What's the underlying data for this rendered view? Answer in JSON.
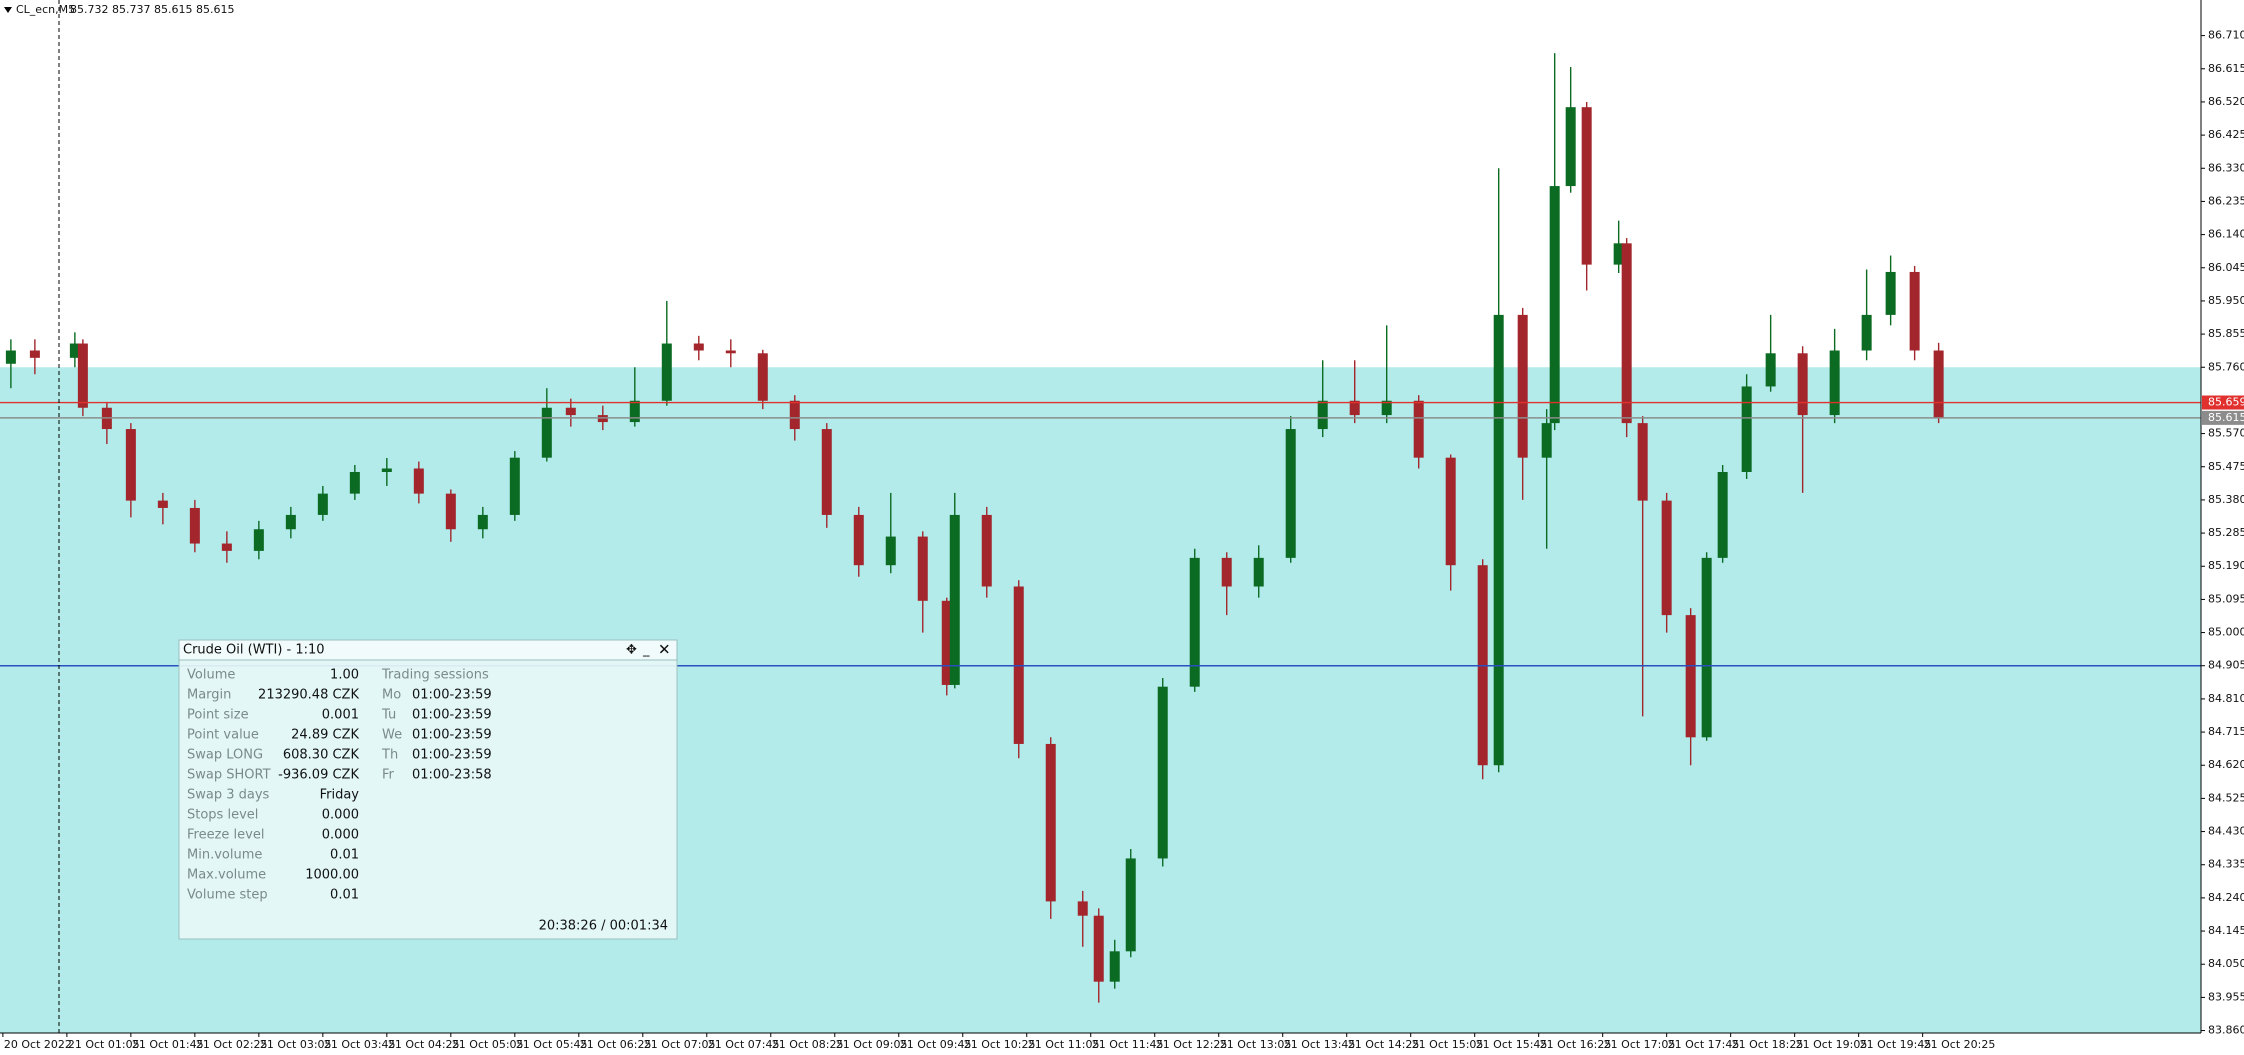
{
  "header": {
    "symbol": "CL_ecn,M5",
    "quote": "85.732 85.737 85.615 85.615"
  },
  "chart_data": {
    "type": "candlestick",
    "x": [
      1,
      4,
      9,
      10,
      13,
      16,
      20,
      24,
      28,
      32,
      36,
      40,
      44,
      48,
      52,
      56,
      60,
      64,
      68,
      71,
      75,
      79,
      83,
      87,
      91,
      95,
      99,
      103,
      107,
      111,
      115,
      118,
      119,
      123,
      127,
      131,
      135,
      137,
      139,
      141,
      145,
      149,
      153,
      157,
      161,
      165,
      169,
      173,
      177,
      181,
      185,
      187,
      190,
      193,
      194,
      196,
      198,
      202,
      203,
      205,
      208,
      211,
      213,
      215,
      218,
      221,
      225,
      229,
      233,
      236,
      239,
      242
    ],
    "open": [
      85.77,
      85.808,
      85.787,
      85.828,
      85.644,
      85.583,
      85.378,
      85.357,
      85.255,
      85.234,
      85.296,
      85.337,
      85.398,
      85.46,
      85.47,
      85.398,
      85.296,
      85.337,
      85.501,
      85.644,
      85.623,
      85.603,
      85.664,
      85.828,
      85.808,
      85.8,
      85.664,
      85.583,
      85.337,
      85.193,
      85.275,
      85.091,
      84.85,
      85.337,
      85.132,
      84.681,
      84.23,
      84.189,
      84.0,
      84.087,
      84.353,
      84.845,
      85.214,
      85.132,
      85.214,
      85.583,
      85.664,
      85.623,
      85.664,
      85.501,
      85.193,
      84.62,
      85.91,
      85.501,
      85.6,
      86.279,
      86.505,
      86.054,
      86.115,
      85.6,
      85.378,
      85.05,
      84.7,
      85.214,
      85.46,
      85.705,
      85.8,
      85.623,
      85.808,
      85.91,
      86.033,
      85.808
    ],
    "high": [
      85.84,
      85.84,
      85.86,
      85.84,
      85.66,
      85.6,
      85.4,
      85.38,
      85.29,
      85.32,
      85.36,
      85.42,
      85.48,
      85.5,
      85.49,
      85.41,
      85.36,
      85.52,
      85.7,
      85.67,
      85.65,
      85.76,
      85.95,
      85.85,
      85.84,
      85.81,
      85.68,
      85.6,
      85.36,
      85.4,
      85.29,
      85.1,
      85.4,
      85.36,
      85.15,
      84.7,
      84.26,
      84.21,
      84.12,
      84.38,
      84.87,
      85.24,
      85.23,
      85.25,
      85.62,
      85.78,
      85.78,
      85.88,
      85.68,
      85.51,
      85.21,
      86.33,
      85.93,
      85.64,
      86.66,
      86.62,
      86.52,
      86.18,
      86.13,
      85.62,
      85.4,
      85.07,
      85.23,
      85.48,
      85.74,
      85.91,
      85.82,
      85.87,
      86.04,
      86.08,
      86.05,
      85.83
    ],
    "low": [
      85.7,
      85.74,
      85.76,
      85.62,
      85.54,
      85.33,
      85.31,
      85.23,
      85.2,
      85.21,
      85.27,
      85.32,
      85.38,
      85.42,
      85.37,
      85.26,
      85.27,
      85.32,
      85.49,
      85.59,
      85.58,
      85.59,
      85.65,
      85.78,
      85.76,
      85.64,
      85.55,
      85.3,
      85.16,
      85.17,
      85.0,
      84.82,
      84.84,
      85.1,
      84.64,
      84.18,
      84.1,
      83.94,
      83.98,
      84.07,
      84.33,
      84.83,
      85.05,
      85.1,
      85.2,
      85.56,
      85.6,
      85.6,
      85.47,
      85.12,
      84.58,
      84.6,
      85.38,
      85.24,
      85.58,
      86.26,
      85.98,
      86.03,
      85.56,
      84.76,
      85.0,
      84.62,
      84.69,
      85.2,
      85.44,
      85.69,
      85.4,
      85.6,
      85.78,
      85.88,
      85.78,
      85.6
    ],
    "close": [
      85.808,
      85.787,
      85.828,
      85.644,
      85.583,
      85.378,
      85.357,
      85.255,
      85.234,
      85.296,
      85.337,
      85.398,
      85.46,
      85.47,
      85.398,
      85.296,
      85.337,
      85.501,
      85.644,
      85.623,
      85.603,
      85.664,
      85.828,
      85.808,
      85.8,
      85.664,
      85.583,
      85.337,
      85.193,
      85.275,
      85.091,
      84.85,
      85.337,
      85.132,
      84.681,
      84.23,
      84.189,
      84.0,
      84.087,
      84.353,
      84.845,
      85.214,
      85.132,
      85.214,
      85.583,
      85.664,
      85.623,
      85.664,
      85.501,
      85.193,
      84.62,
      85.91,
      85.501,
      85.6,
      86.279,
      86.505,
      86.054,
      86.115,
      85.6,
      85.378,
      85.05,
      84.7,
      85.214,
      85.46,
      85.705,
      85.8,
      85.623,
      85.808,
      85.91,
      86.033,
      85.808,
      85.615
    ],
    "up_color": "#0b6b22",
    "down_color": "#a3262c",
    "xlim": [
      -0.36,
      274.8
    ],
    "xticks": [
      {
        "value": 0,
        "label": "20 Oct 2022"
      },
      {
        "value": 8,
        "label": "21 Oct 01:05"
      },
      {
        "value": 16,
        "label": "21 Oct 01:45"
      },
      {
        "value": 24,
        "label": "21 Oct 02:25"
      },
      {
        "value": 32,
        "label": "21 Oct 03:05"
      },
      {
        "value": 40,
        "label": "21 Oct 03:45"
      },
      {
        "value": 48,
        "label": "21 Oct 04:25"
      },
      {
        "value": 56,
        "label": "21 Oct 05:05"
      },
      {
        "value": 64,
        "label": "21 Oct 05:45"
      },
      {
        "value": 72,
        "label": "21 Oct 06:25"
      },
      {
        "value": 80,
        "label": "21 Oct 07:05"
      },
      {
        "value": 88,
        "label": "21 Oct 07:45"
      },
      {
        "value": 96,
        "label": "21 Oct 08:25"
      },
      {
        "value": 104,
        "label": "21 Oct 09:05"
      },
      {
        "value": 112,
        "label": "21 Oct 09:45"
      },
      {
        "value": 120,
        "label": "21 Oct 10:25"
      },
      {
        "value": 128,
        "label": "21 Oct 11:05"
      },
      {
        "value": 136,
        "label": "21 Oct 11:45"
      },
      {
        "value": 144,
        "label": "21 Oct 12:25"
      },
      {
        "value": 152,
        "label": "21 Oct 13:05"
      },
      {
        "value": 160,
        "label": "21 Oct 13:45"
      },
      {
        "value": 168,
        "label": "21 Oct 14:25"
      },
      {
        "value": 176,
        "label": "21 Oct 15:05"
      },
      {
        "value": 184,
        "label": "21 Oct 15:45"
      },
      {
        "value": 192,
        "label": "21 Oct 16:25"
      },
      {
        "value": 200,
        "label": "21 Oct 17:05"
      },
      {
        "value": 208,
        "label": "21 Oct 17:45"
      },
      {
        "value": 216,
        "label": "21 Oct 18:25"
      },
      {
        "value": 224,
        "label": "21 Oct 19:05"
      },
      {
        "value": 232,
        "label": "21 Oct 19:45"
      },
      {
        "value": 240,
        "label": "21 Oct 20:25"
      }
    ],
    "ylim": [
      83.853,
      86.812
    ],
    "yticks": [
      {
        "value": 86.71,
        "label": "86.710"
      },
      {
        "value": 86.615,
        "label": "86.615"
      },
      {
        "value": 86.52,
        "label": "86.520"
      },
      {
        "value": 86.425,
        "label": "86.425"
      },
      {
        "value": 86.33,
        "label": "86.330"
      },
      {
        "value": 86.235,
        "label": "86.235"
      },
      {
        "value": 86.14,
        "label": "86.140"
      },
      {
        "value": 86.045,
        "label": "86.045"
      },
      {
        "value": 85.95,
        "label": "85.950"
      },
      {
        "value": 85.855,
        "label": "85.855"
      },
      {
        "value": 85.76,
        "label": "85.760"
      },
      {
        "value": 85.57,
        "label": "85.570"
      },
      {
        "value": 85.475,
        "label": "85.475"
      },
      {
        "value": 85.38,
        "label": "85.380"
      },
      {
        "value": 85.285,
        "label": "85.285"
      },
      {
        "value": 85.19,
        "label": "85.190"
      },
      {
        "value": 85.095,
        "label": "85.095"
      },
      {
        "value": 85.0,
        "label": "85.000"
      },
      {
        "value": 84.905,
        "label": "84.905"
      },
      {
        "value": 84.81,
        "label": "84.810"
      },
      {
        "value": 84.715,
        "label": "84.715"
      },
      {
        "value": 84.62,
        "label": "84.620"
      },
      {
        "value": 84.525,
        "label": "84.525"
      },
      {
        "value": 84.43,
        "label": "84.430"
      },
      {
        "value": 84.335,
        "label": "84.335"
      },
      {
        "value": 84.24,
        "label": "84.240"
      },
      {
        "value": 84.145,
        "label": "84.145"
      },
      {
        "value": 84.05,
        "label": "84.050"
      },
      {
        "value": 83.955,
        "label": "83.955"
      },
      {
        "value": 83.86,
        "label": "83.860"
      }
    ],
    "zone": {
      "top": 85.76,
      "color": "#b2ebea"
    },
    "price_lines": [
      {
        "value": 85.659,
        "label": "85.659",
        "color": "#e0312e"
      },
      {
        "value": 85.615,
        "label": "85.615",
        "color": "#8c8c8c"
      },
      {
        "value": 84.905,
        "color": "#2a4fc0"
      }
    ]
  },
  "panel": {
    "title": "Crude Oil (WTI) - 1:10",
    "rows": [
      [
        "Volume",
        "1.00"
      ],
      [
        "Margin",
        "213290.48 CZK"
      ],
      [
        "Point size",
        "0.001"
      ],
      [
        "Point value",
        "24.89 CZK"
      ],
      [
        "Swap LONG",
        "608.30 CZK"
      ],
      [
        "Swap SHORT",
        "-936.09 CZK"
      ],
      [
        "Swap 3 days",
        "Friday"
      ],
      [
        "Stops level",
        "0.000"
      ],
      [
        "Freeze level",
        "0.000"
      ],
      [
        "Min.volume",
        "0.01"
      ],
      [
        "Max.volume",
        "1000.00"
      ],
      [
        "Volume step",
        "0.01"
      ]
    ],
    "sessions_title": "Trading sessions",
    "sessions": [
      [
        "Mo",
        "01:00-23:59"
      ],
      [
        "Tu",
        "01:00-23:59"
      ],
      [
        "We",
        "01:00-23:59"
      ],
      [
        "Th",
        "01:00-23:59"
      ],
      [
        "Fr",
        "01:00-23:58"
      ]
    ],
    "footer": "20:38:26 / 00:01:34"
  }
}
